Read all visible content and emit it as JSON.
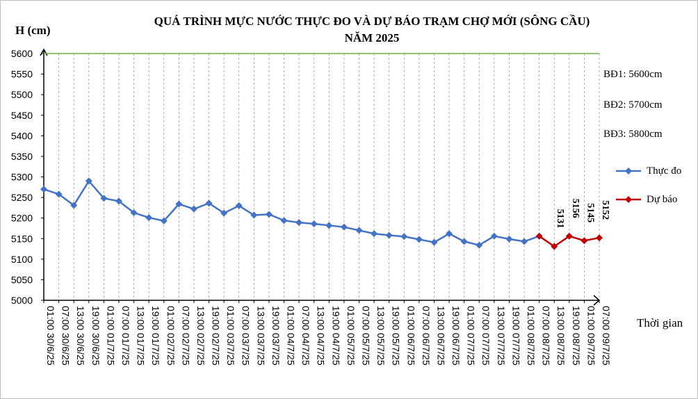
{
  "chart_data": {
    "type": "line",
    "title_line1": "QUÁ TRÌNH MỰC NƯỚC THỰC ĐO VÀ DỰ BÁO TRẠM CHỢ MỚI (SÔNG CẦU)",
    "title_line2": "NĂM 2025",
    "ylabel": "H (cm)",
    "xlabel": "Thời gian",
    "ylim": [
      5000,
      5600
    ],
    "yticks": [
      5000,
      5050,
      5100,
      5150,
      5200,
      5250,
      5300,
      5350,
      5400,
      5450,
      5500,
      5550,
      5600
    ],
    "grid": true,
    "legend_position": "right",
    "reference_line": 5600,
    "reference_color": "#70ad47",
    "alert_levels": [
      "BĐ1: 5600cm",
      "BĐ2: 5700cm",
      "BĐ3: 5800cm"
    ],
    "categories": [
      "01:00 30/6/25",
      "07:00 30/6/25",
      "13:00 30/6/25",
      "19:00 30/6/25",
      "01:00 01/7/25",
      "07:00 01/7/25",
      "13:00 01/7/25",
      "19:00 01/7/25",
      "01:00 02/7/25",
      "07:00 02/7/25",
      "13:00 02/7/25",
      "19:00 02/7/25",
      "01:00 03/7/25",
      "07:00 03/7/25",
      "13:00 03/7/25",
      "19:00 03/7/25",
      "01:00 04/7/25",
      "07:00 04/7/25",
      "13:00 04/7/25",
      "19:00 04/7/25",
      "01:00 05/7/25",
      "07:00 05/7/25",
      "13:00 05/7/25",
      "19:00 05/7/25",
      "01:00 06/7/25",
      "07:00 06/7/25",
      "13:00 06/7/25",
      "19:00 06/7/25",
      "01:00 07/7/25",
      "07:00 07/7/25",
      "13:00 07/7/25",
      "19:00 07/7/25",
      "01:00 08/7/25",
      "07:00 08/7/25",
      "13:00 08/7/25",
      "19:00 08/7/25",
      "01:00 09/7/25",
      "07:00 09/7/25"
    ],
    "series": [
      {
        "name": "Thực đo",
        "color": "#4472c4",
        "values": [
          5270,
          5258,
          5231,
          5290,
          5248,
          5241,
          5213,
          5201,
          5193,
          5234,
          5222,
          5236,
          5212,
          5230,
          5207,
          5209,
          5194,
          5189,
          5186,
          5182,
          5178,
          5170,
          5162,
          5158,
          5155,
          5148,
          5141,
          5162,
          5143,
          5134,
          5156,
          5149,
          5143,
          5156,
          null,
          null,
          null,
          null
        ]
      },
      {
        "name": "Dự báo",
        "color": "#c00000",
        "values": [
          null,
          null,
          null,
          null,
          null,
          null,
          null,
          null,
          null,
          null,
          null,
          null,
          null,
          null,
          null,
          null,
          null,
          null,
          null,
          null,
          null,
          null,
          null,
          null,
          null,
          null,
          null,
          null,
          null,
          null,
          null,
          null,
          null,
          5156,
          5131,
          5156,
          5145,
          5152
        ],
        "data_labels": [
          null,
          null,
          null,
          null,
          null,
          null,
          null,
          null,
          null,
          null,
          null,
          null,
          null,
          null,
          null,
          null,
          null,
          null,
          null,
          null,
          null,
          null,
          null,
          null,
          null,
          null,
          null,
          null,
          null,
          null,
          null,
          null,
          null,
          null,
          "5131",
          "5156",
          "5145",
          "5152"
        ]
      }
    ]
  }
}
